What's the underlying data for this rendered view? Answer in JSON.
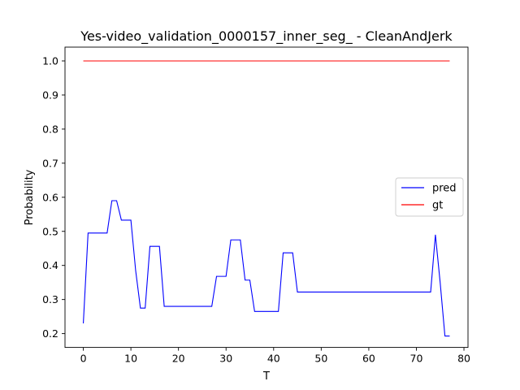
{
  "chart_data": {
    "type": "line",
    "title": "Yes-video_validation_0000157_inner_seg_ - CleanAndJerk",
    "xlabel": "T",
    "ylabel": "Probability",
    "xlim": [
      -3.85,
      80.85
    ],
    "ylim": [
      0.1595,
      1.0405
    ],
    "xticks": [
      0,
      10,
      20,
      30,
      40,
      50,
      60,
      70,
      80
    ],
    "yticks": [
      0.2,
      0.3,
      0.4,
      0.5,
      0.6,
      0.7,
      0.8,
      0.9,
      1.0
    ],
    "xtick_labels": [
      "0",
      "10",
      "20",
      "30",
      "40",
      "50",
      "60",
      "70",
      "80"
    ],
    "ytick_labels": [
      "0.2",
      "0.3",
      "0.4",
      "0.5",
      "0.6",
      "0.7",
      "0.8",
      "0.9",
      "1.0"
    ],
    "grid": false,
    "legend_position": "center-right",
    "series": [
      {
        "name": "pred",
        "color": "#0000ff",
        "x": [
          0,
          1,
          2,
          3,
          4,
          5,
          6,
          7,
          8,
          9,
          10,
          11,
          12,
          13,
          14,
          15,
          16,
          17,
          18,
          19,
          20,
          21,
          22,
          23,
          24,
          25,
          26,
          27,
          28,
          29,
          30,
          31,
          32,
          33,
          34,
          35,
          36,
          37,
          38,
          39,
          40,
          41,
          42,
          43,
          44,
          45,
          46,
          47,
          48,
          49,
          50,
          51,
          52,
          53,
          54,
          55,
          56,
          57,
          58,
          59,
          60,
          61,
          62,
          63,
          64,
          65,
          66,
          67,
          68,
          69,
          70,
          71,
          72,
          73,
          74,
          75,
          76,
          77
        ],
        "y": [
          0.23,
          0.495,
          0.495,
          0.495,
          0.495,
          0.495,
          0.59,
          0.59,
          0.533,
          0.533,
          0.533,
          0.385,
          0.275,
          0.275,
          0.456,
          0.456,
          0.456,
          0.28,
          0.28,
          0.28,
          0.28,
          0.28,
          0.28,
          0.28,
          0.28,
          0.28,
          0.28,
          0.28,
          0.368,
          0.368,
          0.368,
          0.475,
          0.475,
          0.475,
          0.357,
          0.357,
          0.265,
          0.265,
          0.265,
          0.265,
          0.265,
          0.265,
          0.437,
          0.437,
          0.437,
          0.322,
          0.322,
          0.322,
          0.322,
          0.322,
          0.322,
          0.322,
          0.322,
          0.322,
          0.322,
          0.322,
          0.322,
          0.322,
          0.322,
          0.322,
          0.322,
          0.322,
          0.322,
          0.322,
          0.322,
          0.322,
          0.322,
          0.322,
          0.322,
          0.322,
          0.322,
          0.322,
          0.322,
          0.322,
          0.49,
          0.35,
          0.193,
          0.193
        ]
      },
      {
        "name": "gt",
        "color": "#ff0000",
        "x": [
          0,
          77
        ],
        "y": [
          1.0,
          1.0
        ]
      }
    ]
  }
}
